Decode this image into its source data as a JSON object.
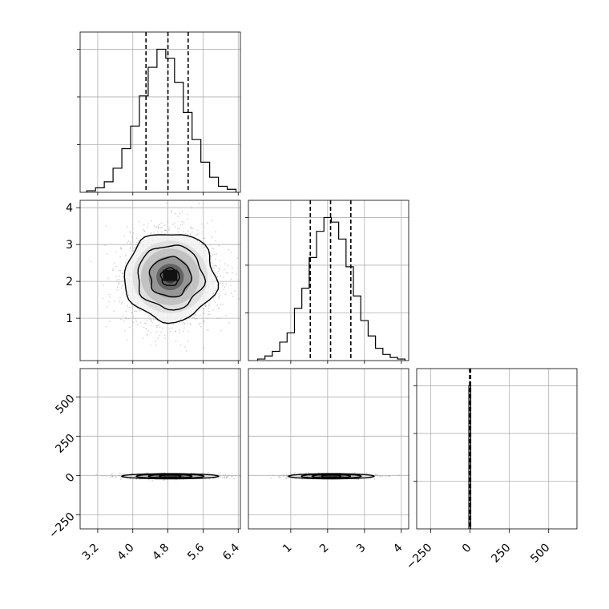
{
  "chart_data": {
    "type": "corner",
    "grid": true,
    "colors": {
      "line": "#000000",
      "grid": "#b0b0b0",
      "scatter": "#9a9a9a"
    },
    "quantiles": [
      "0.16",
      "0.5",
      "0.84"
    ],
    "params": [
      {
        "key": "a",
        "range": [
          2.8,
          6.45
        ],
        "ticks": [
          3.2,
          4.0,
          4.8,
          5.6,
          6.4
        ],
        "tick_labels": [
          "3.2",
          "4.0",
          "4.8",
          "5.6",
          "6.4"
        ],
        "quantile_values": [
          4.3,
          4.8,
          5.26
        ]
      },
      {
        "key": "b",
        "range": [
          -0.15,
          4.2
        ],
        "ticks": [
          1,
          2,
          3,
          4
        ],
        "tick_labels": [
          "1",
          "2",
          "3",
          "4"
        ],
        "quantile_values": [
          1.53,
          2.08,
          2.63
        ]
      },
      {
        "key": "c",
        "range": [
          -340,
          680
        ],
        "ticks": [
          -250,
          0,
          250,
          500
        ],
        "tick_labels": [
          "−250",
          "0",
          "250",
          "500"
        ],
        "quantile_values": [
          -3,
          0,
          3
        ]
      }
    ],
    "histograms": [
      {
        "param": "a",
        "bin_edges": [
          2.95,
          3.15,
          3.35,
          3.55,
          3.75,
          3.95,
          4.15,
          4.35,
          4.55,
          4.75,
          4.95,
          5.15,
          5.35,
          5.55,
          5.75,
          5.95,
          6.15,
          6.35
        ],
        "counts": [
          1,
          3,
          7,
          16,
          29,
          44,
          64,
          83,
          95,
          89,
          73,
          53,
          35,
          20,
          10,
          4,
          2
        ]
      },
      {
        "param": "b",
        "bin_edges": [
          0.1,
          0.3,
          0.5,
          0.7,
          0.9,
          1.1,
          1.3,
          1.5,
          1.7,
          1.9,
          2.1,
          2.3,
          2.5,
          2.7,
          2.9,
          3.1,
          3.3,
          3.5,
          3.7,
          3.9,
          4.1
        ],
        "counts": [
          1,
          3,
          6,
          12,
          18,
          34,
          47,
          67,
          84,
          93,
          90,
          79,
          61,
          42,
          26,
          16,
          8,
          4,
          2,
          1
        ]
      },
      {
        "param": "c",
        "bin_edges": [
          -8,
          -2,
          4
        ],
        "counts": [
          95,
          95
        ]
      }
    ],
    "pairs": [
      {
        "x": "a",
        "y": "b",
        "center": [
          4.85,
          2.12
        ],
        "spread": [
          0.52,
          0.6
        ],
        "contour_scales": [
          1.0,
          0.72,
          0.45,
          0.2
        ]
      },
      {
        "x": "a",
        "y": "c",
        "center": [
          4.85,
          -5
        ],
        "spread": [
          0.55,
          8
        ],
        "contour_scales": [
          1.0,
          0.7,
          0.45,
          0.22
        ]
      },
      {
        "x": "b",
        "y": "c",
        "center": [
          2.1,
          -5
        ],
        "spread": [
          0.58,
          8
        ],
        "contour_scales": [
          1.0,
          0.7,
          0.45,
          0.22
        ]
      }
    ]
  }
}
